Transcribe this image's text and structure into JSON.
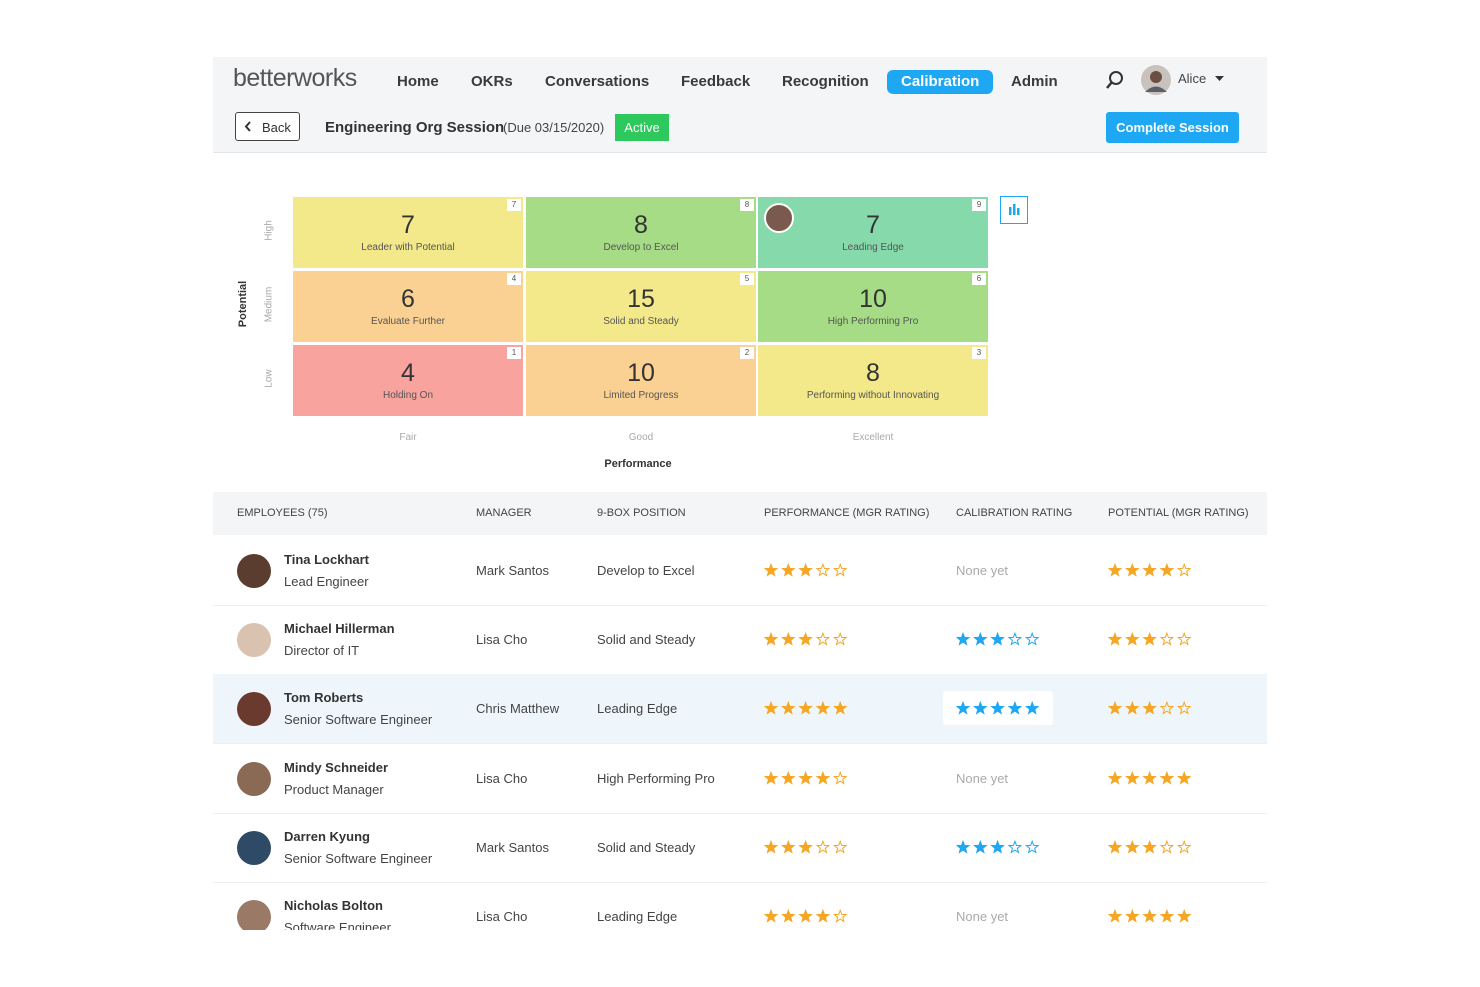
{
  "nav": {
    "logo": "betterworks",
    "items": [
      "Home",
      "OKRs",
      "Conversations",
      "Feedback",
      "Recognition",
      "Calibration",
      "Admin"
    ],
    "active": 5,
    "user": "Alice"
  },
  "session": {
    "back": "Back",
    "title": "Engineering Org Session",
    "due": "(Due 03/15/2020)",
    "status": "Active",
    "action": "Complete Session"
  },
  "grid": {
    "y_label": "Potential",
    "x_label": "Performance",
    "row_labels": [
      "High",
      "Medium",
      "Low"
    ],
    "column_labels": [
      "Fair",
      "Good",
      "Excellent"
    ],
    "cells": [
      [
        {
          "count": "7",
          "label": "Leader with Potential",
          "index": "7",
          "color": "#f3e98a"
        },
        {
          "count": "8",
          "label": "Develop to Excel",
          "index": "8",
          "color": "#a6dc86"
        },
        {
          "count": "7",
          "label": "Leading Edge",
          "index": "9",
          "color": "#86d9ab"
        }
      ],
      [
        {
          "count": "6",
          "label": "Evaluate Further",
          "index": "4",
          "color": "#fbd093"
        },
        {
          "count": "15",
          "label": "Solid and Steady",
          "index": "5",
          "color": "#f3e98a"
        },
        {
          "count": "10",
          "label": "High Performing Pro",
          "index": "6",
          "color": "#a6dc86"
        }
      ],
      [
        {
          "count": "4",
          "label": "Holding On",
          "index": "1",
          "color": "#f8a39e"
        },
        {
          "count": "10",
          "label": "Limited Progress",
          "index": "2",
          "color": "#fbd093"
        },
        {
          "count": "8",
          "label": "Performing without Innovating",
          "index": "3",
          "color": "#f3e98a"
        }
      ]
    ]
  },
  "table": {
    "headers": [
      "EMPLOYEES (75)",
      "MANAGER",
      "9-BOX POSITION",
      "PERFORMANCE (MGR RATING)",
      "CALIBRATION RATING",
      "POTENTIAL (MGR RATING)"
    ],
    "highlighted": 2,
    "rows": [
      {
        "name": "Tina Lockhart",
        "title": "Lead Engineer",
        "manager": "Mark Santos",
        "position": "Develop to Excel",
        "performance": 3,
        "calibration": "None yet",
        "potential": 4
      },
      {
        "name": "Michael Hillerman",
        "title": "Director of IT",
        "manager": "Lisa Cho",
        "position": "Solid and Steady",
        "performance": 3,
        "calibration": 3,
        "potential": 3
      },
      {
        "name": "Tom Roberts",
        "title": "Senior Software Engineer",
        "manager": "Chris Matthew",
        "position": "Leading Edge",
        "performance": 5,
        "calibration": 5,
        "potential": 3
      },
      {
        "name": "Mindy Schneider",
        "title": "Product Manager",
        "manager": "Lisa Cho",
        "position": "High Performing Pro",
        "performance": 4,
        "calibration": "None yet",
        "potential": 5
      },
      {
        "name": "Darren Kyung",
        "title": "Senior Software Engineer",
        "manager": "Mark Santos",
        "position": "Solid and Steady",
        "performance": 3,
        "calibration": 3,
        "potential": 3
      },
      {
        "name": "Nicholas Bolton",
        "title": "Software Engineer",
        "manager": "Lisa Cho",
        "position": "Leading Edge",
        "performance": 4,
        "calibration": "None yet",
        "potential": 5
      }
    ]
  }
}
